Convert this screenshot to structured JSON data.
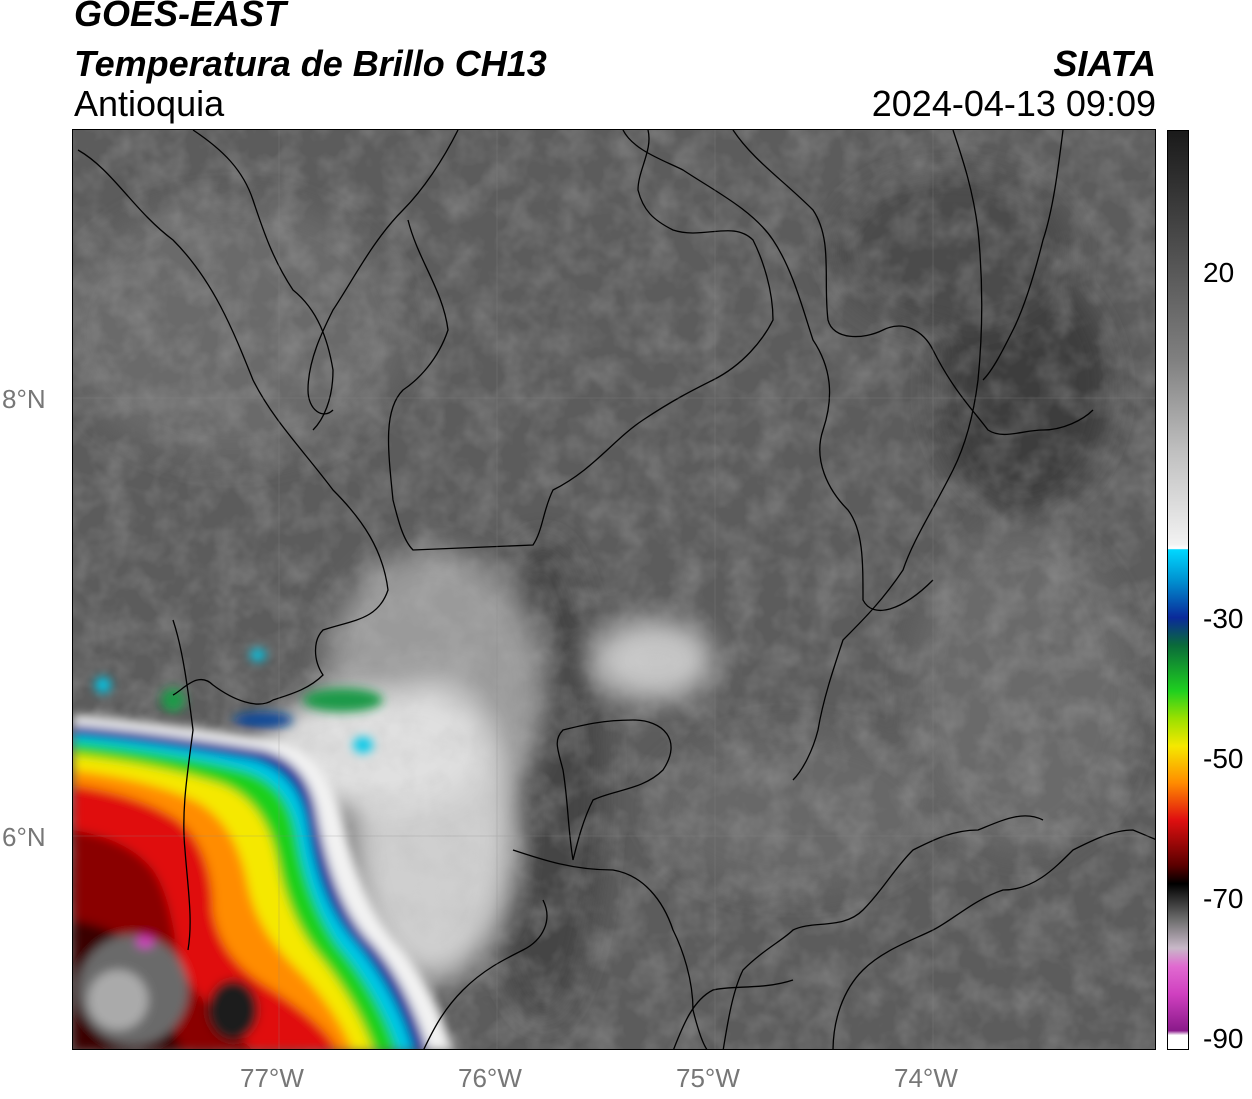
{
  "header": {
    "satellite": "GOES-EAST",
    "product": "Temperatura de Brillo CH13",
    "region": "Antioquia",
    "organization": "SIATA",
    "timestamp": "2024-04-13 09:09"
  },
  "map": {
    "lat_labels": [
      "8°N",
      "6°N"
    ],
    "lon_labels": [
      "77°W",
      "76°W",
      "75°W",
      "74°W"
    ]
  },
  "colorbar": {
    "ticks": [
      "20",
      "-30",
      "-50",
      "-70",
      "-90"
    ],
    "colors": {
      "gray_light": "#f2f2f2",
      "gray_dark": "#1a1a1a",
      "cyan": "#00d8ff",
      "blue": "#0a2a9a",
      "green": "#1fd01f",
      "yellow": "#f5e800",
      "orange": "#ff8c00",
      "red": "#e01010",
      "darkred": "#5a0000",
      "magenta": "#d040c0"
    }
  }
}
